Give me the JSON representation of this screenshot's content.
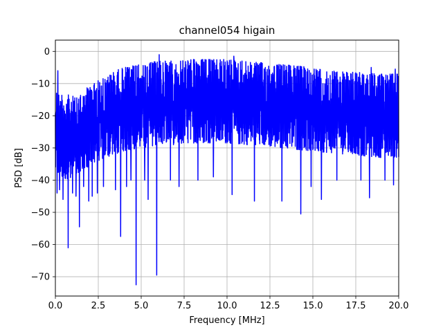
{
  "chart_data": {
    "type": "line",
    "title": "channel054 higain",
    "xlabel": "Frequency [MHz]",
    "ylabel": "PSD [dB]",
    "xlim": [
      0,
      20
    ],
    "ylim": [
      -76,
      3.5
    ],
    "xticks": [
      0,
      2.5,
      5,
      7.5,
      10,
      12.5,
      15,
      17.5,
      20
    ],
    "xtick_labels": [
      "0.0",
      "2.5",
      "5.0",
      "7.5",
      "10.0",
      "12.5",
      "15.0",
      "17.5",
      "20.0"
    ],
    "yticks": [
      0,
      -10,
      -20,
      -30,
      -40,
      -50,
      -60,
      -70
    ],
    "ytick_labels": [
      "0",
      "−10",
      "−20",
      "−30",
      "−40",
      "−50",
      "−60",
      "−70"
    ],
    "grid": true,
    "legend": "none",
    "series": [
      {
        "color": "#0000ff",
        "envelope": {
          "x": [
            0,
            0.5,
            1.0,
            1.5,
            2.0,
            2.5,
            3.0,
            3.5,
            4.0,
            5.0,
            6.0,
            7.0,
            8.0,
            9.0,
            10.0,
            11.0,
            12.0,
            13.0,
            14.0,
            15.0,
            16.0,
            17.0,
            18.0,
            19.0,
            20.0
          ],
          "upper": [
            -12,
            -13,
            -14,
            -12,
            -11,
            -9,
            -8,
            -6,
            -5,
            -4,
            -3,
            -3,
            -2.5,
            -2.5,
            -2.5,
            -3,
            -3.5,
            -4,
            -4.5,
            -5,
            -6,
            -6.5,
            -6.5,
            -7,
            -7
          ],
          "lower": [
            -38,
            -40,
            -39,
            -37,
            -36,
            -34,
            -33,
            -32,
            -31,
            -30,
            -29,
            -29,
            -28.5,
            -28.5,
            -28.5,
            -29,
            -29,
            -30,
            -30.5,
            -31,
            -31.5,
            -32,
            -32.5,
            -33,
            -33
          ]
        },
        "upper_spikes": [
          {
            "x": 0.15,
            "y": -6
          },
          {
            "x": 3.3,
            "y": -9
          },
          {
            "x": 4.4,
            "y": -4
          },
          {
            "x": 6.05,
            "y": -1
          },
          {
            "x": 10.4,
            "y": -1.5
          },
          {
            "x": 18.4,
            "y": -5
          },
          {
            "x": 19.8,
            "y": -5.5
          }
        ],
        "lower_spikes": [
          {
            "x": 0.1,
            "y": -44
          },
          {
            "x": 0.25,
            "y": -43
          },
          {
            "x": 0.45,
            "y": -46
          },
          {
            "x": 0.75,
            "y": -61
          },
          {
            "x": 1.0,
            "y": -44
          },
          {
            "x": 1.2,
            "y": -45
          },
          {
            "x": 1.4,
            "y": -54.5
          },
          {
            "x": 1.65,
            "y": -42
          },
          {
            "x": 1.95,
            "y": -46.5
          },
          {
            "x": 2.15,
            "y": -45
          },
          {
            "x": 2.45,
            "y": -44
          },
          {
            "x": 2.8,
            "y": -42
          },
          {
            "x": 3.5,
            "y": -43
          },
          {
            "x": 3.8,
            "y": -57.5
          },
          {
            "x": 4.15,
            "y": -42
          },
          {
            "x": 4.4,
            "y": -40
          },
          {
            "x": 4.7,
            "y": -72.5
          },
          {
            "x": 5.2,
            "y": -40
          },
          {
            "x": 5.4,
            "y": -46
          },
          {
            "x": 5.9,
            "y": -69.5
          },
          {
            "x": 6.7,
            "y": -40
          },
          {
            "x": 7.2,
            "y": -42
          },
          {
            "x": 8.3,
            "y": -40
          },
          {
            "x": 9.2,
            "y": -39
          },
          {
            "x": 10.3,
            "y": -44.5
          },
          {
            "x": 11.6,
            "y": -46.5
          },
          {
            "x": 13.2,
            "y": -46.5
          },
          {
            "x": 14.3,
            "y": -50.5
          },
          {
            "x": 14.9,
            "y": -42
          },
          {
            "x": 15.5,
            "y": -46
          },
          {
            "x": 16.4,
            "y": -40
          },
          {
            "x": 17.8,
            "y": -40
          },
          {
            "x": 18.3,
            "y": -45.5
          },
          {
            "x": 19.2,
            "y": -40
          },
          {
            "x": 19.7,
            "y": -41.5
          }
        ]
      }
    ]
  }
}
